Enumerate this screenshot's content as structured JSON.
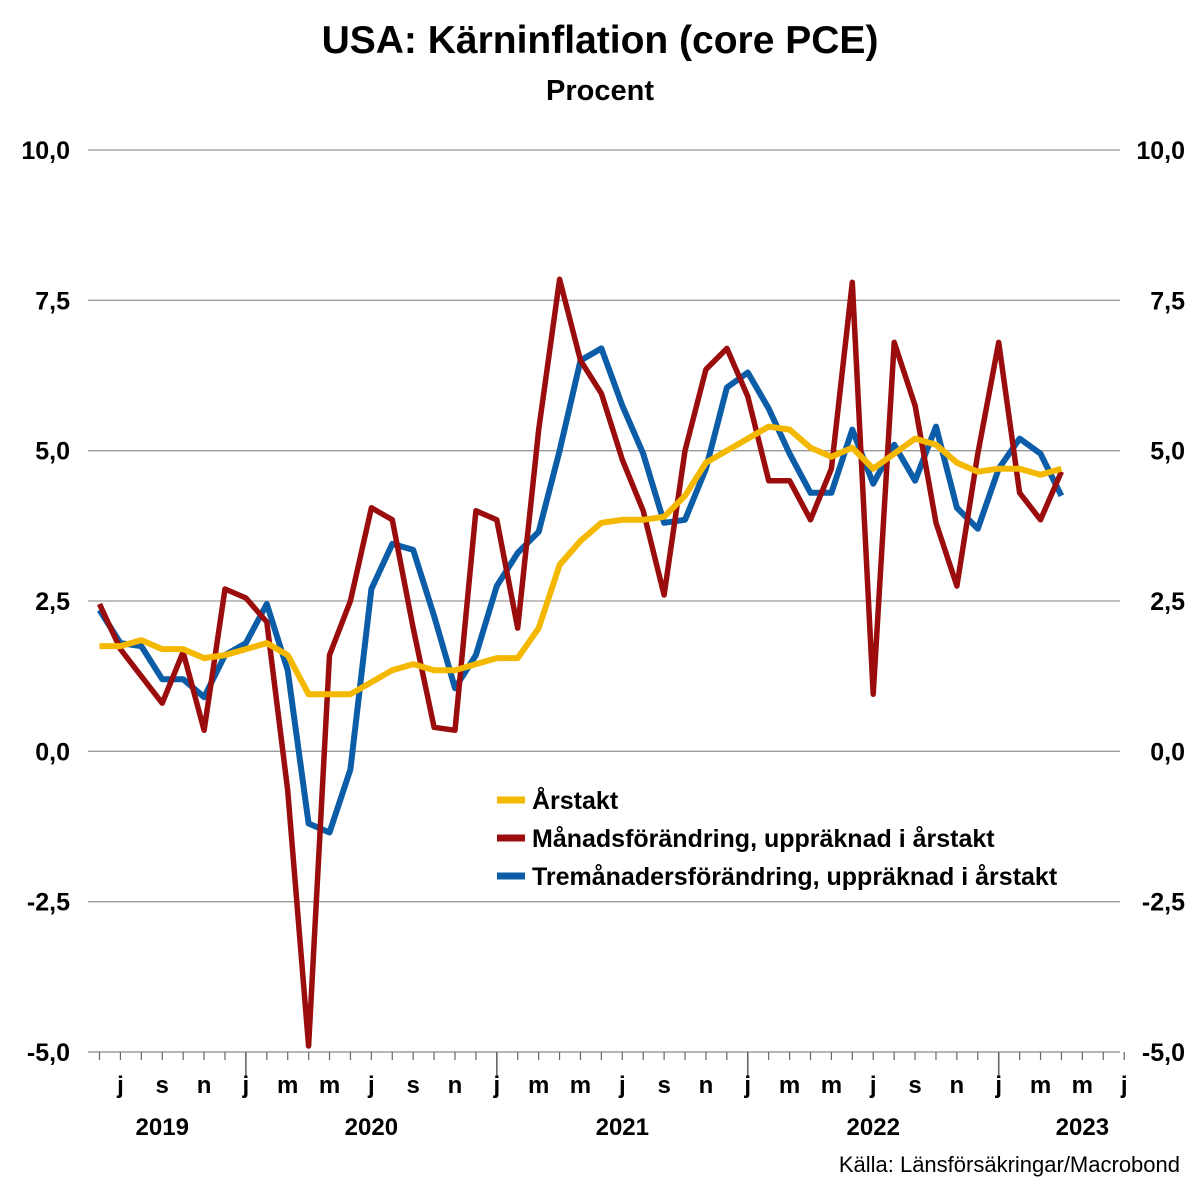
{
  "chart_data": {
    "type": "line",
    "title": "USA: Kärninflation (core PCE)",
    "subtitle": "Procent",
    "source": "Källa: Länsförsäkringar/Macrobond",
    "ylim": [
      -5,
      10
    ],
    "yticks": [
      10,
      7.5,
      5,
      2.5,
      0,
      -2.5,
      -5
    ],
    "ytick_labels": [
      "10,0",
      "7,5",
      "5,0",
      "2,5",
      "0,0",
      "-2,5",
      "-5,0"
    ],
    "x_start": "2019-06",
    "x_end": "2023-07",
    "month_ticks": [
      {
        "date": "2019-07",
        "label": "j"
      },
      {
        "date": "2019-09",
        "label": "s"
      },
      {
        "date": "2019-11",
        "label": "n"
      },
      {
        "date": "2020-01",
        "label": "j"
      },
      {
        "date": "2020-03",
        "label": "m"
      },
      {
        "date": "2020-05",
        "label": "m"
      },
      {
        "date": "2020-07",
        "label": "j"
      },
      {
        "date": "2020-09",
        "label": "s"
      },
      {
        "date": "2020-11",
        "label": "n"
      },
      {
        "date": "2021-01",
        "label": "j"
      },
      {
        "date": "2021-03",
        "label": "m"
      },
      {
        "date": "2021-05",
        "label": "m"
      },
      {
        "date": "2021-07",
        "label": "j"
      },
      {
        "date": "2021-09",
        "label": "s"
      },
      {
        "date": "2021-11",
        "label": "n"
      },
      {
        "date": "2022-01",
        "label": "j"
      },
      {
        "date": "2022-03",
        "label": "m"
      },
      {
        "date": "2022-05",
        "label": "m"
      },
      {
        "date": "2022-07",
        "label": "j"
      },
      {
        "date": "2022-09",
        "label": "s"
      },
      {
        "date": "2022-11",
        "label": "n"
      },
      {
        "date": "2023-01",
        "label": "j"
      },
      {
        "date": "2023-03",
        "label": "m"
      },
      {
        "date": "2023-05",
        "label": "m"
      },
      {
        "date": "2023-07",
        "label": "j"
      }
    ],
    "year_labels": [
      {
        "date": "2019-09",
        "label": "2019"
      },
      {
        "date": "2020-07",
        "label": "2020"
      },
      {
        "date": "2021-07",
        "label": "2021"
      },
      {
        "date": "2022-07",
        "label": "2022"
      },
      {
        "date": "2023-05",
        "label": "2023"
      }
    ],
    "year_boundaries": [
      "2020-01",
      "2021-01",
      "2022-01",
      "2023-01"
    ],
    "x": [
      "2019-06",
      "2019-07",
      "2019-08",
      "2019-09",
      "2019-10",
      "2019-11",
      "2019-12",
      "2020-01",
      "2020-02",
      "2020-03",
      "2020-04",
      "2020-05",
      "2020-06",
      "2020-07",
      "2020-08",
      "2020-09",
      "2020-10",
      "2020-11",
      "2020-12",
      "2021-01",
      "2021-02",
      "2021-03",
      "2021-04",
      "2021-05",
      "2021-06",
      "2021-07",
      "2021-08",
      "2021-09",
      "2021-10",
      "2021-11",
      "2021-12",
      "2022-01",
      "2022-02",
      "2022-03",
      "2022-04",
      "2022-05",
      "2022-06",
      "2022-07",
      "2022-08",
      "2022-09",
      "2022-10",
      "2022-11",
      "2022-12",
      "2023-01",
      "2023-02",
      "2023-03",
      "2023-04"
    ],
    "series": [
      {
        "name": "Årstakt",
        "color": "#F5B800",
        "values": [
          1.75,
          1.75,
          1.85,
          1.7,
          1.7,
          1.55,
          1.6,
          1.7,
          1.8,
          1.6,
          0.95,
          0.95,
          0.95,
          1.15,
          1.35,
          1.45,
          1.35,
          1.35,
          1.45,
          1.55,
          1.55,
          2.05,
          3.1,
          3.5,
          3.8,
          3.85,
          3.85,
          3.9,
          4.25,
          4.8,
          5.0,
          5.2,
          5.4,
          5.35,
          5.05,
          4.9,
          5.05,
          4.7,
          4.95,
          5.2,
          5.1,
          4.8,
          4.65,
          4.7,
          4.7,
          4.6,
          4.7
        ]
      },
      {
        "name": "Månadsförändring, uppräknad i årstakt",
        "color": "#9B0D0D",
        "values": [
          2.45,
          1.7,
          1.25,
          0.8,
          1.65,
          0.35,
          2.7,
          2.55,
          2.15,
          -0.65,
          -4.9,
          1.6,
          2.5,
          4.05,
          3.85,
          2.05,
          0.4,
          0.35,
          4.0,
          3.85,
          2.05,
          5.35,
          7.85,
          6.5,
          5.95,
          4.85,
          4.0,
          2.6,
          5.0,
          6.35,
          6.7,
          5.9,
          4.5,
          4.5,
          3.85,
          4.7,
          7.8,
          0.95,
          6.8,
          5.75,
          3.8,
          2.75,
          4.95,
          6.8,
          4.3,
          3.85,
          4.65
        ]
      },
      {
        "name": "Tremånadersförändring, uppräknad i årstakt",
        "color": "#0B5DA8",
        "values": [
          2.35,
          1.8,
          1.75,
          1.2,
          1.2,
          0.9,
          1.6,
          1.8,
          2.45,
          1.35,
          -1.2,
          -1.35,
          -0.3,
          2.7,
          3.45,
          3.35,
          2.25,
          1.05,
          1.6,
          2.75,
          3.3,
          3.65,
          5.0,
          6.5,
          6.7,
          5.75,
          4.95,
          3.8,
          3.85,
          4.7,
          6.05,
          6.3,
          5.7,
          4.95,
          4.3,
          4.3,
          5.35,
          4.45,
          5.1,
          4.5,
          5.4,
          4.05,
          3.7,
          4.7,
          5.2,
          4.95,
          4.25
        ]
      }
    ],
    "legend": {
      "placement": "inside-center-right",
      "entries": [
        "Årstakt",
        "Månadsförändring, uppräknad i årstakt",
        "Tremånadersförändring, uppräknad i årstakt"
      ]
    },
    "grid": true
  }
}
